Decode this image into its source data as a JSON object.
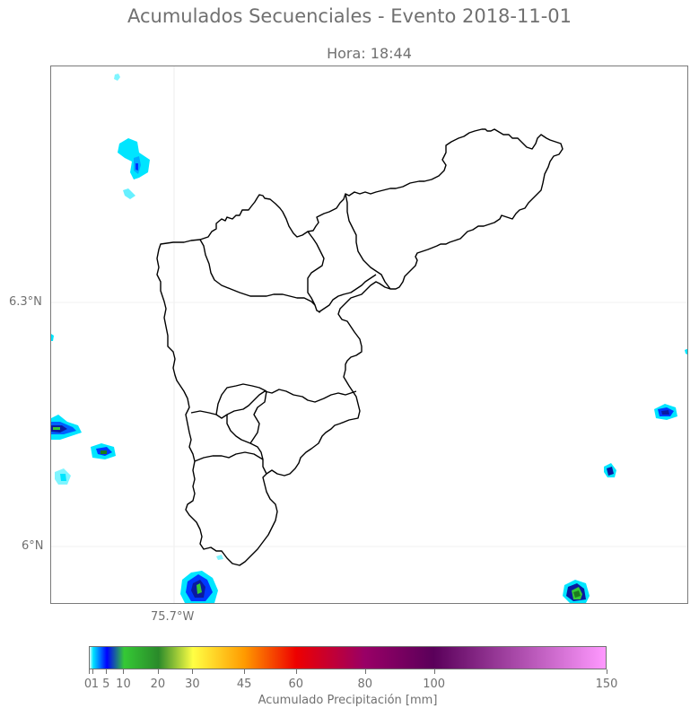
{
  "title": "Acumulados Secuenciales - Evento 2018-11-01",
  "subtitle": "Hora: 18:44",
  "map": {
    "lat_labels": [
      "6.3°N",
      "6°N"
    ],
    "lon_labels": [
      "75.7°W"
    ]
  },
  "colorbar": {
    "caption": "Acumulado Precipitación [mm]",
    "vmin": 0,
    "vmax": 150,
    "ticks": [
      0,
      1,
      5,
      10,
      20,
      30,
      45,
      60,
      80,
      100,
      150
    ],
    "colors": {
      "stop_0": "#e6ffff",
      "stop_1": "#00e5ff",
      "stop_5": "#0000ff",
      "stop_10": "#35c935",
      "stop_20": "#2a8a2a",
      "stop_30": "#ffff44",
      "stop_45": "#ff9a00",
      "stop_60": "#ee0000",
      "stop_80": "#990066",
      "stop_100": "#5a005a",
      "stop_150": "#ff99ff"
    }
  }
}
